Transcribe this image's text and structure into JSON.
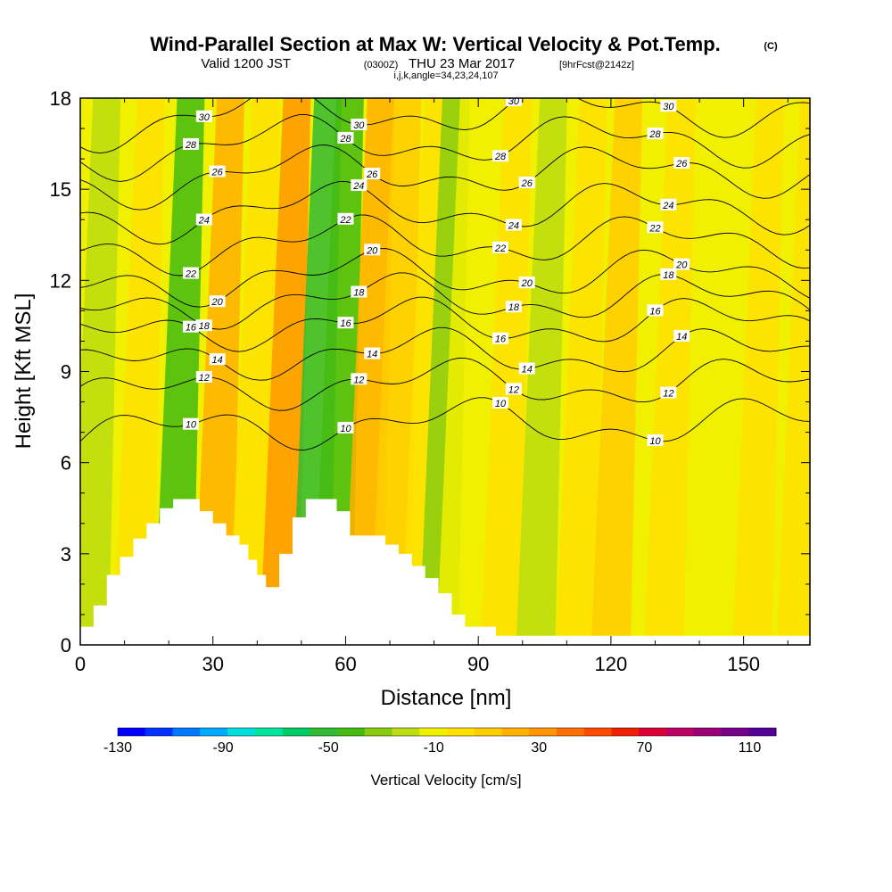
{
  "title": "Wind-Parallel Section at Max W: Vertical Velocity & Pot.Temp.",
  "title_mark": "(C)",
  "subtitle_a": "Valid 1200 JST",
  "subtitle_b": "(0300Z)",
  "subtitle_c": "THU 23 Mar 2017",
  "subtitle_d": "[9hrFcst@2142z]",
  "subtitle2": "i,j,k,angle=34,23,24,107",
  "chart_data": {
    "type": "heatmap",
    "xlabel": "Distance [nm]",
    "ylabel": "Height [Kft MSL]",
    "xlim": [
      0,
      165
    ],
    "ylim": [
      0,
      18
    ],
    "xticks": [
      "0",
      "30",
      "60",
      "90",
      "120",
      "150"
    ],
    "xtick_values": [
      0,
      30,
      60,
      90,
      120,
      150
    ],
    "yticks": [
      "0",
      "3",
      "6",
      "9",
      "12",
      "15",
      "18"
    ],
    "ytick_values": [
      0,
      3,
      6,
      9,
      12,
      15,
      18
    ],
    "colorbar": {
      "label": "Vertical Velocity [cm/s]",
      "tick_labels": [
        "-130",
        "-90",
        "-50",
        "-10",
        "30",
        "70",
        "110"
      ],
      "tick_values": [
        -130,
        -90,
        -50,
        -10,
        30,
        70,
        110
      ],
      "range": [
        -130,
        120
      ],
      "colors": [
        "#0000ff",
        "#0033ff",
        "#0077ff",
        "#00aaff",
        "#00dddd",
        "#00e4a0",
        "#00cc66",
        "#33bb33",
        "#44bb11",
        "#88cc11",
        "#bbdd11",
        "#f0f000",
        "#ffe000",
        "#ffcc00",
        "#ffb000",
        "#ff9600",
        "#ff7000",
        "#ff4a00",
        "#ee2200",
        "#dd0033",
        "#bb0066",
        "#990077",
        "#770088",
        "#550099"
      ]
    },
    "velocity_bands": [
      {
        "x": 2,
        "value": -25
      },
      {
        "x": 12,
        "value": 5
      },
      {
        "x": 21,
        "value": -45
      },
      {
        "x": 30,
        "value": 20
      },
      {
        "x": 38,
        "value": 5
      },
      {
        "x": 45,
        "value": 30
      },
      {
        "x": 52,
        "value": -55
      },
      {
        "x": 57,
        "value": -40
      },
      {
        "x": 64,
        "value": 20
      },
      {
        "x": 70,
        "value": 10
      },
      {
        "x": 77,
        "value": 0
      },
      {
        "x": 81,
        "value": -30
      },
      {
        "x": 85,
        "value": -15
      },
      {
        "x": 95,
        "value": 0
      },
      {
        "x": 103,
        "value": -20
      },
      {
        "x": 112,
        "value": 0
      },
      {
        "x": 120,
        "value": 15
      },
      {
        "x": 132,
        "value": 0
      },
      {
        "x": 142,
        "value": -15
      },
      {
        "x": 152,
        "value": 5
      },
      {
        "x": 162,
        "value": 0
      }
    ],
    "terrain": [
      [
        0,
        0.6
      ],
      [
        3,
        1.3
      ],
      [
        6,
        2.3
      ],
      [
        9,
        2.9
      ],
      [
        12,
        3.5
      ],
      [
        15,
        4.0
      ],
      [
        18,
        4.5
      ],
      [
        21,
        4.8
      ],
      [
        24,
        4.8
      ],
      [
        27,
        4.4
      ],
      [
        30,
        4.0
      ],
      [
        33,
        3.6
      ],
      [
        36,
        3.3
      ],
      [
        38,
        2.8
      ],
      [
        40,
        2.3
      ],
      [
        42,
        1.9
      ],
      [
        45,
        3.0
      ],
      [
        48,
        4.2
      ],
      [
        51,
        4.8
      ],
      [
        55,
        4.8
      ],
      [
        58,
        4.4
      ],
      [
        61,
        3.6
      ],
      [
        65,
        3.6
      ],
      [
        69,
        3.3
      ],
      [
        72,
        3.0
      ],
      [
        75,
        2.6
      ],
      [
        78,
        2.2
      ],
      [
        81,
        1.7
      ],
      [
        84,
        1.0
      ],
      [
        87,
        0.6
      ],
      [
        94,
        0.3
      ],
      [
        165,
        0.3
      ]
    ],
    "isentropes": [
      {
        "label": "10",
        "base": 7.3
      },
      {
        "label": "12",
        "base": 8.6
      },
      {
        "label": "14",
        "base": 9.6
      },
      {
        "label": "16",
        "base": 10.6
      },
      {
        "label": "18",
        "base": 11.4
      },
      {
        "label": "20",
        "base": 12.2
      },
      {
        "label": "22",
        "base": 13.3
      },
      {
        "label": "24",
        "base": 14.4
      },
      {
        "label": "26",
        "base": 15.6
      },
      {
        "label": "28",
        "base": 16.6
      },
      {
        "label": "30",
        "base": 17.6
      }
    ]
  }
}
